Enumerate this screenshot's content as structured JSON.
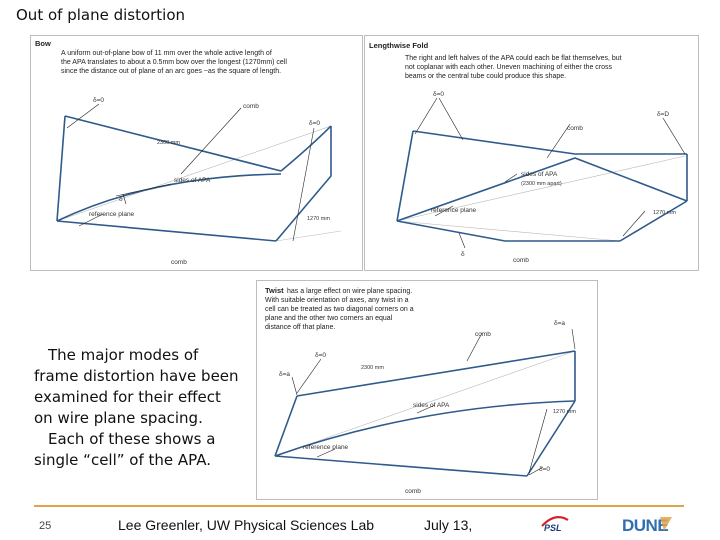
{
  "slide": {
    "title": "Out of plane distortion",
    "caption": [
      "The major modes of frame distortion have been examined for their effect on wire plane spacing.",
      "Each of these shows a single “cell” of the APA."
    ]
  },
  "bow": {
    "title": "Bow",
    "desc": [
      "A uniform out-of-plane bow of 11 mm over the whole active length of",
      "the APA translates to about a 0.5mm bow over the longest (1270mm) cell",
      "since the distance out of plane of an arc goes ~as the square of length."
    ],
    "labels": {
      "d0_left": "δ=0",
      "comb_top": "comb",
      "d0_right": "δ=0",
      "length": "2300 mm",
      "sides": "sides of APA",
      "delta": "δ",
      "reference": "reference plane",
      "width": "1270 mm",
      "comb_bottom": "comb"
    }
  },
  "fold": {
    "title": "Lengthwise Fold",
    "desc": [
      "The right and left halves of the APA could each be flat themselves, but",
      "not coplanar with each other.  Uneven machining of either the cross",
      "beams or the central tube could produce this shape."
    ],
    "labels": {
      "d0_top": "δ=0",
      "dD": "δ=D",
      "comb_top": "comb",
      "sides": "sides of APA",
      "sides_sub": "(2300 mm apart)",
      "reference": "reference plane",
      "width": "1270 mm",
      "delta": "δ",
      "comb_bottom": "comb"
    }
  },
  "twist": {
    "title": "Twist",
    "desc": [
      "has a large effect on wire plane spacing.",
      "With suitable orientation of axes, any twist in a",
      "cell can be treated as two diagonal corners on a",
      "plane and the other two corners an equal",
      "distance off that plane."
    ],
    "labels": {
      "comb_top": "comb",
      "da_right": "δ=a",
      "d0_top": "δ=0",
      "da_left": "δ=a",
      "length": "2300 mm",
      "sides": "sides of APA",
      "width": "1270 mm",
      "reference": "reference plane",
      "d0_bottom": "δ=0",
      "comb_bottom": "comb"
    }
  },
  "footer": {
    "page_number": "25",
    "presenter": "Lee Greenler, UW Physical Sciences Lab",
    "date": "July 13,",
    "logo_psl": "PSL",
    "logo_dune": "DUNE"
  },
  "colors": {
    "frame": "#2f5a8c",
    "reference_line": "#b8b8b8",
    "leader": "#222222",
    "accent": "#e0a44a"
  }
}
